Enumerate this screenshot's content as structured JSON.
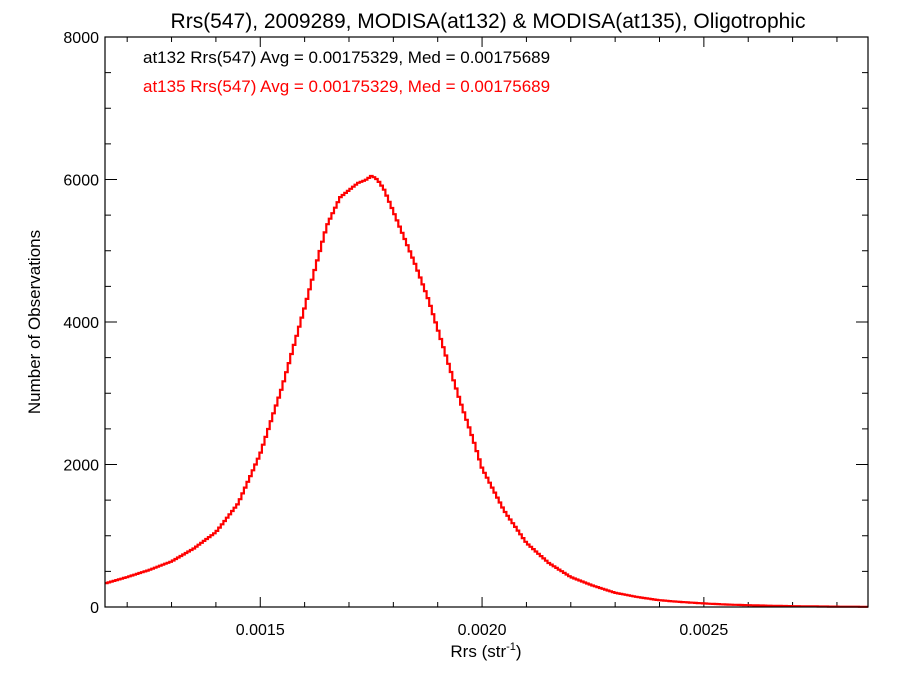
{
  "chart_data": {
    "type": "line",
    "step": true,
    "title": "Rrs(547), 2009289, MODISA(at132) & MODISA(at135), Oligotrophic",
    "xlabel": "Rrs (str",
    "xlabel_sup": "-1",
    "xlabel_close": ")",
    "ylabel": "Number of Observations",
    "xlim": [
      0.00115,
      0.00287
    ],
    "ylim": [
      0,
      8000
    ],
    "xticks": [
      0.0015,
      0.002,
      0.0025
    ],
    "xtick_labels": [
      "0.0015",
      "0.0020",
      "0.0025"
    ],
    "yticks": [
      0,
      2000,
      4000,
      6000,
      8000
    ],
    "ytick_labels": [
      "0",
      "2000",
      "4000",
      "6000",
      "8000"
    ],
    "grid": false,
    "legend": [
      {
        "text": "at132 Rrs(547) Avg = 0.00175329, Med = 0.00175689",
        "color": "#000000"
      },
      {
        "text": "at135 Rrs(547) Avg = 0.00175329, Med = 0.00175689",
        "color": "#ff0000"
      }
    ],
    "series": [
      {
        "color": "#ff0000",
        "x": [
          0.00115,
          0.0012,
          0.00125,
          0.0013,
          0.00135,
          0.0014,
          0.00145,
          0.0015,
          0.00155,
          0.0016,
          0.00163,
          0.00165,
          0.00168,
          0.0017,
          0.00172,
          0.00174,
          0.00175,
          0.00176,
          0.00177,
          0.00178,
          0.0018,
          0.00182,
          0.00185,
          0.00188,
          0.0019,
          0.00192,
          0.00195,
          0.00198,
          0.002,
          0.00205,
          0.0021,
          0.00215,
          0.0022,
          0.00225,
          0.0023,
          0.00235,
          0.0024,
          0.00245,
          0.0025,
          0.00255,
          0.0026,
          0.00265,
          0.0027,
          0.00275,
          0.0028,
          0.00287
        ],
        "y": [
          330,
          420,
          520,
          640,
          820,
          1050,
          1450,
          2150,
          3100,
          4200,
          4900,
          5350,
          5750,
          5850,
          5950,
          6000,
          6050,
          6020,
          5950,
          5850,
          5550,
          5250,
          4800,
          4300,
          3900,
          3500,
          2900,
          2350,
          1950,
          1350,
          900,
          620,
          420,
          300,
          200,
          140,
          95,
          70,
          50,
          35,
          25,
          18,
          12,
          8,
          5,
          3
        ]
      }
    ]
  }
}
